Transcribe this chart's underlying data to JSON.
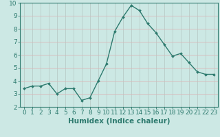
{
  "xlabel": "Humidex (Indice chaleur)",
  "ylabel": "",
  "x": [
    0,
    1,
    2,
    3,
    4,
    5,
    6,
    7,
    8,
    9,
    10,
    11,
    12,
    13,
    14,
    15,
    16,
    17,
    18,
    19,
    20,
    21,
    22,
    23
  ],
  "y": [
    3.4,
    3.6,
    3.6,
    3.8,
    3.0,
    3.4,
    3.4,
    2.5,
    2.7,
    4.0,
    5.3,
    7.8,
    8.9,
    9.8,
    9.4,
    8.4,
    7.7,
    6.8,
    5.9,
    6.1,
    5.4,
    4.7,
    4.5,
    4.5
  ],
  "line_color": "#2d7a6e",
  "marker": "D",
  "marker_size": 2.0,
  "line_width": 1.0,
  "ylim": [
    2,
    10
  ],
  "xlim": [
    -0.5,
    23.5
  ],
  "yticks": [
    2,
    3,
    4,
    5,
    6,
    7,
    8,
    9,
    10
  ],
  "xticks": [
    0,
    1,
    2,
    3,
    4,
    5,
    6,
    7,
    8,
    9,
    10,
    11,
    12,
    13,
    14,
    15,
    16,
    17,
    18,
    19,
    20,
    21,
    22,
    23
  ],
  "bg_color": "#cce8e4",
  "grid_color_h": "#d8b8b8",
  "grid_color_v": "#b8ccc8",
  "tick_label_fontsize": 6.5,
  "xlabel_fontsize": 7.5
}
